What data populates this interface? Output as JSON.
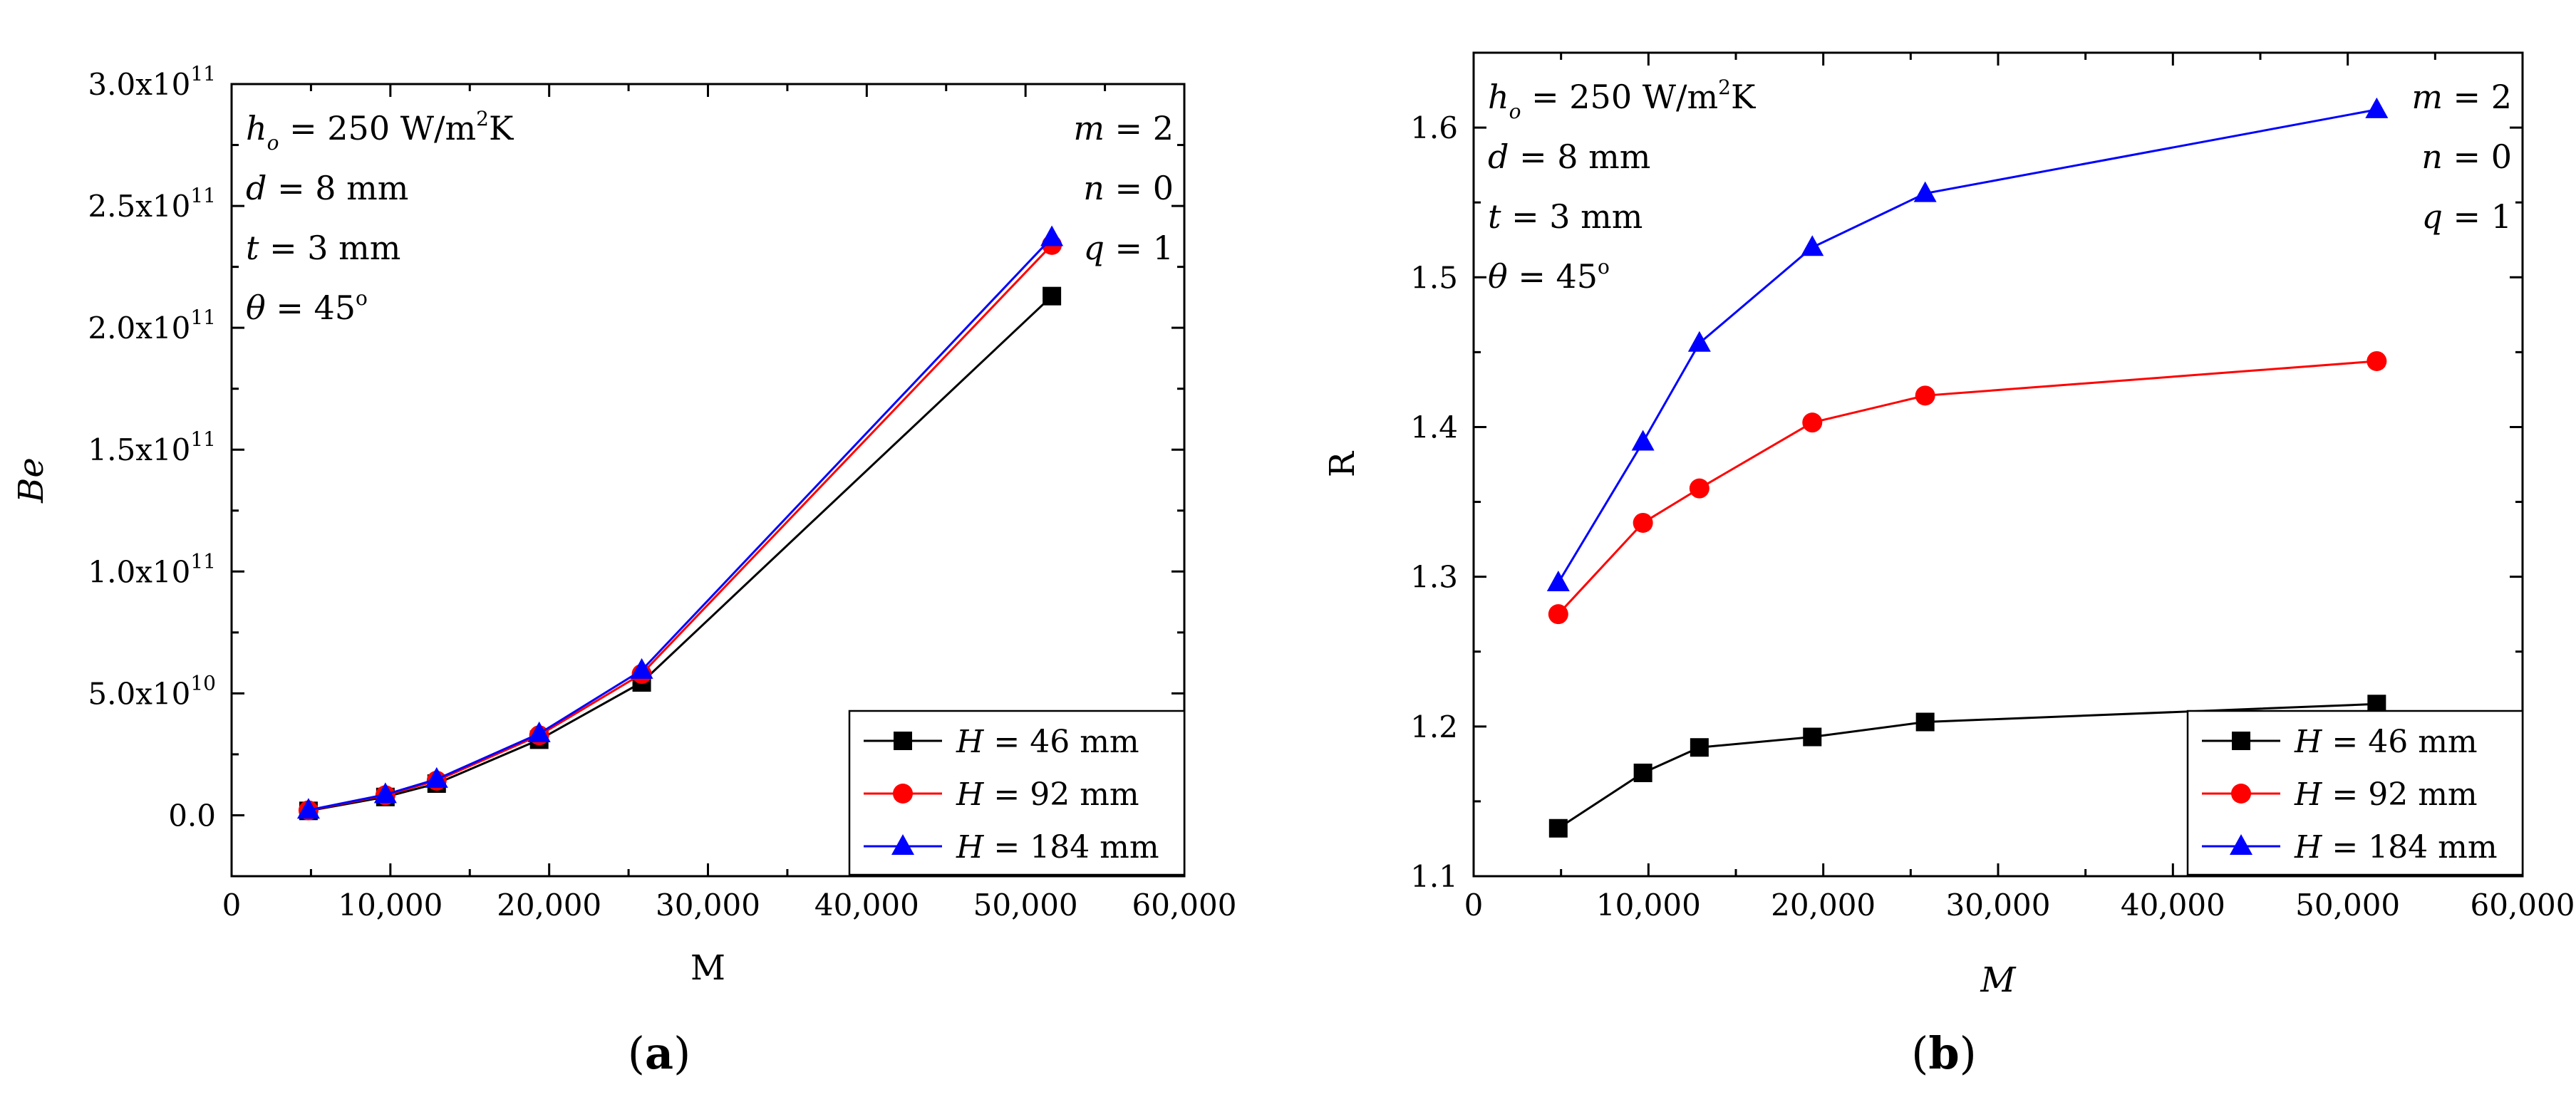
{
  "chart_data": [
    {
      "panel": "(a)",
      "panel_letter": "a",
      "type": "line",
      "xlabel": "M",
      "ylabel": "Be",
      "xlim": [
        0,
        60000
      ],
      "ylim": [
        -25000000000.0,
        300000000000.0
      ],
      "xticks": [
        0,
        10000,
        20000,
        30000,
        40000,
        50000,
        60000
      ],
      "xtick_labels": [
        "0",
        "10,000",
        "20,000",
        "30,000",
        "40,000",
        "50,000",
        "60,000"
      ],
      "yticks": [
        0,
        50000000000.0,
        100000000000.0,
        150000000000.0,
        200000000000.0,
        250000000000.0,
        300000000000.0
      ],
      "ytick_labels": [
        {
          "mant": "0.0",
          "exp": ""
        },
        {
          "mant": "5.0x10",
          "exp": "10"
        },
        {
          "mant": "1.0x10",
          "exp": "11"
        },
        {
          "mant": "1.5x10",
          "exp": "11"
        },
        {
          "mant": "2.0x10",
          "exp": "11"
        },
        {
          "mant": "2.5x10",
          "exp": "11"
        },
        {
          "mant": "3.0x10",
          "exp": "11"
        }
      ],
      "x": [
        4843,
        9686,
        12915,
        19372,
        25829,
        51658
      ],
      "series": [
        {
          "name": "H = 46 mm",
          "var": "H",
          "rest": " = 46 mm",
          "color": "#000000",
          "marker": "square",
          "values": [
            1800000000.0,
            7500000000.0,
            13000000000.0,
            31000000000.0,
            54500000000.0,
            213000000000.0
          ]
        },
        {
          "name": "H = 92 mm",
          "var": "H",
          "rest": " = 92 mm",
          "color": "#ff0000",
          "marker": "circle",
          "values": [
            2000000000.0,
            8200000000.0,
            14200000000.0,
            32800000000.0,
            58000000000.0,
            234000000000.0
          ]
        },
        {
          "name": "H = 184 mm",
          "var": "H",
          "rest": " = 184 mm",
          "color": "#0000ff",
          "marker": "triangle",
          "values": [
            2100000000.0,
            8500000000.0,
            14800000000.0,
            33500000000.0,
            59500000000.0,
            237000000000.0
          ]
        }
      ],
      "annotations_left": {
        "h": "h",
        "h_sub": "o",
        "h_eq": " = 250 W/m",
        "h_sup": "2",
        "h_unit": "K",
        "d": "d",
        "d_rest": " = 8 mm",
        "t": "t",
        "t_rest": " = 3 mm",
        "theta": "θ",
        "theta_rest": " = 45",
        "theta_sup": "o"
      },
      "annotations_right": {
        "m": "m",
        "m_rest": " = 2",
        "n": "n",
        "n_rest": " =  0",
        "q": "q",
        "q_rest": "  = 1"
      },
      "legend": "bottom-right"
    },
    {
      "panel": "(b)",
      "panel_letter": "b",
      "type": "line",
      "xlabel": "M",
      "ylabel": "R",
      "xlim": [
        0,
        60000
      ],
      "ylim": [
        1.1,
        1.65
      ],
      "xticks": [
        0,
        10000,
        20000,
        30000,
        40000,
        50000,
        60000
      ],
      "xtick_labels": [
        "0",
        "10,000",
        "20,000",
        "30,000",
        "40,000",
        "50,000",
        "60,000"
      ],
      "yticks": [
        1.1,
        1.2,
        1.3,
        1.4,
        1.5,
        1.6
      ],
      "ytick_labels": [
        "1.1",
        "1.2",
        "1.3",
        "1.4",
        "1.5",
        "1.6"
      ],
      "x": [
        4843,
        9686,
        12915,
        19372,
        25829,
        51658
      ],
      "series": [
        {
          "name": "H = 46 mm",
          "var": "H",
          "rest": " = 46 mm",
          "color": "#000000",
          "marker": "square",
          "values": [
            1.132,
            1.169,
            1.186,
            1.193,
            1.203,
            1.215
          ]
        },
        {
          "name": "H = 92 mm",
          "var": "H",
          "rest": " = 92 mm",
          "color": "#ff0000",
          "marker": "circle",
          "values": [
            1.275,
            1.336,
            1.359,
            1.403,
            1.421,
            1.444
          ]
        },
        {
          "name": "H = 184 mm",
          "var": "H",
          "rest": " = 184 mm",
          "color": "#0000ff",
          "marker": "triangle",
          "values": [
            1.296,
            1.39,
            1.456,
            1.52,
            1.556,
            1.612
          ]
        }
      ],
      "annotations_left": {
        "h": "h",
        "h_sub": "o",
        "h_eq": " = 250 W/m",
        "h_sup": "2",
        "h_unit": "K",
        "d": "d",
        "d_rest": " = 8 mm",
        "t": "t",
        "t_rest": " = 3 mm",
        "theta": "θ",
        "theta_rest": " = 45",
        "theta_sup": "o"
      },
      "annotations_right": {
        "m": "m",
        "m_rest": " = 2",
        "n": "n",
        "n_rest": " =  0",
        "q": "q",
        "q_rest": "  = 1"
      },
      "legend": "bottom-right"
    }
  ]
}
